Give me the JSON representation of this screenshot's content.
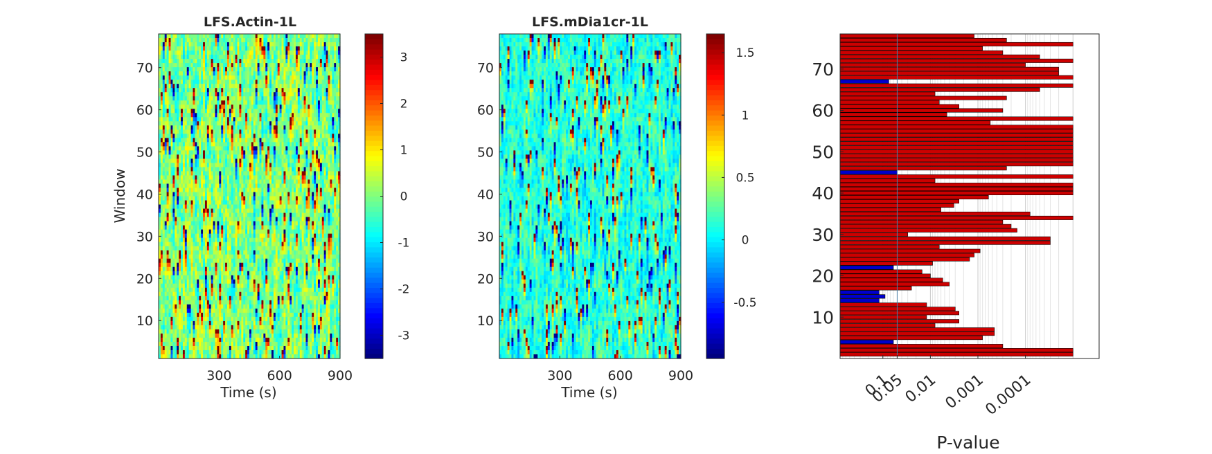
{
  "chart_data": [
    {
      "type": "heatmap",
      "title": "LFS.Actin-1L",
      "xlabel": "Time (s)",
      "ylabel": "Window",
      "xlim": [
        0,
        900
      ],
      "ylim": [
        1,
        78
      ],
      "xticks": [
        300,
        600,
        900
      ],
      "yticks": [
        10,
        20,
        30,
        40,
        50,
        60,
        70
      ],
      "colorbar": {
        "range": [
          -3.5,
          3.5
        ],
        "ticks": [
          -3,
          -2,
          -1,
          0,
          1,
          2,
          3
        ],
        "colormap": "jet"
      },
      "pattern": {
        "vertical_streak_bias": 0.0,
        "contrast": 1.0
      }
    },
    {
      "type": "heatmap",
      "title": "LFS.mDia1cr-1L",
      "xlabel": "Time (s)",
      "ylabel": "",
      "xlim": [
        0,
        900
      ],
      "ylim": [
        1,
        78
      ],
      "xticks": [
        300,
        600,
        900
      ],
      "yticks": [
        10,
        20,
        30,
        40,
        50,
        60,
        70
      ],
      "colorbar": {
        "range": [
          -0.95,
          1.65
        ],
        "ticks": [
          -0.5,
          0,
          0.5,
          1,
          1.5
        ],
        "colormap": "jet"
      },
      "pattern": {
        "vertical_streak_bias": -0.45,
        "contrast": 0.75
      }
    },
    {
      "type": "bar",
      "orientation": "horizontal",
      "xlabel": "P-value",
      "xscale": "log-reversed",
      "xticks": [
        "0.1",
        "0.05",
        "0.01",
        "0.001",
        "0.0001"
      ],
      "xtick_values": [
        0.1,
        0.05,
        0.01,
        0.001,
        0.0001
      ],
      "threshold": 0.05,
      "yticks": [
        10,
        20,
        30,
        40,
        50,
        60,
        70
      ],
      "ylim": [
        0,
        78.5
      ],
      "colors": {
        "significant": "#cc0000",
        "not_significant": "#0000cc"
      },
      "windows": [
        1,
        2,
        3,
        4,
        5,
        6,
        7,
        8,
        9,
        10,
        11,
        12,
        13,
        14,
        15,
        16,
        17,
        18,
        19,
        20,
        21,
        22,
        23,
        24,
        25,
        26,
        27,
        28,
        29,
        30,
        31,
        32,
        33,
        34,
        35,
        36,
        37,
        38,
        39,
        40,
        41,
        42,
        43,
        44,
        45,
        46,
        47,
        48,
        49,
        50,
        51,
        52,
        53,
        54,
        55,
        56,
        57,
        58,
        59,
        60,
        61,
        62,
        63,
        64,
        65,
        66,
        67,
        68,
        69,
        70,
        71,
        72,
        73,
        74,
        75,
        76,
        77,
        78
      ],
      "p_values": [
        1e-05,
        1e-05,
        0.0003,
        0.06,
        0.0008,
        0.00045,
        0.00045,
        0.008,
        0.0025,
        0.012,
        0.0025,
        0.003,
        0.012,
        0.12,
        0.09,
        0.12,
        0.025,
        0.004,
        0.0055,
        0.01,
        0.015,
        0.06,
        0.009,
        0.0015,
        0.0012,
        0.0009,
        0.0065,
        3e-05,
        3e-05,
        0.03,
        0.00015,
        0.0002,
        0.0003,
        1e-05,
        8e-05,
        0.006,
        0.0032,
        0.0025,
        0.0006,
        1e-05,
        1e-05,
        1e-05,
        0.008,
        1e-05,
        0.05,
        0.00025,
        1e-05,
        1e-05,
        1e-05,
        1e-05,
        1e-05,
        1e-05,
        1e-05,
        1e-05,
        1e-05,
        1e-05,
        0.00055,
        1e-05,
        0.0045,
        0.0003,
        0.0025,
        0.0065,
        0.00025,
        0.008,
        5e-05,
        1e-05,
        0.075,
        1e-05,
        2e-05,
        2e-05,
        0.0001,
        1e-05,
        5e-05,
        0.0003,
        0.0008,
        1e-05,
        0.00025,
        0.0012
      ]
    }
  ]
}
